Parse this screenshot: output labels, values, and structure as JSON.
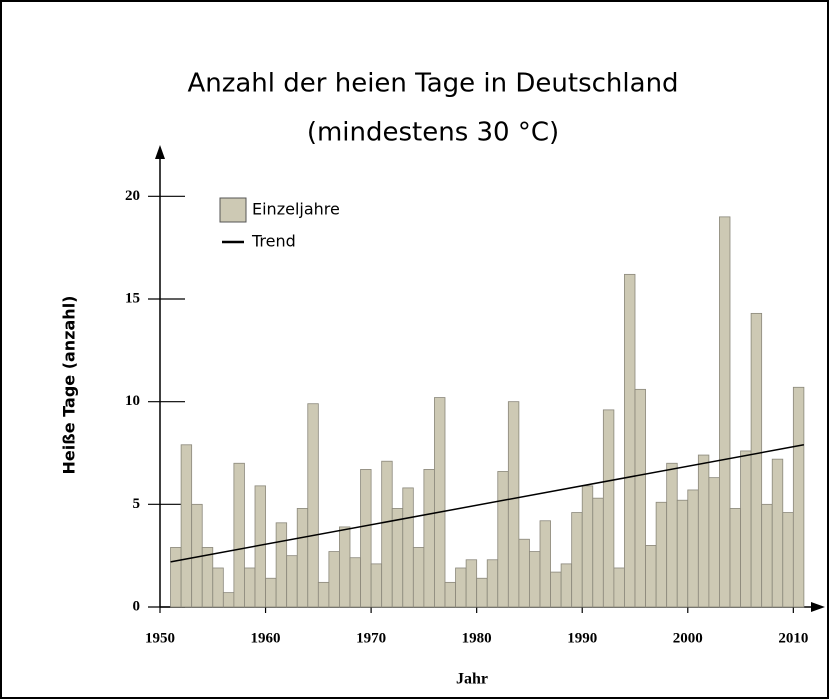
{
  "chart_data": {
    "type": "bar",
    "title": [
      "Anzahl der heien Tage in Deutschland",
      "(mindestens 30 °C)"
    ],
    "xlabel": "Jahr",
    "ylabel": "Heiße Tage (anzahl)",
    "x": [
      1951,
      1952,
      1953,
      1954,
      1955,
      1956,
      1957,
      1958,
      1959,
      1960,
      1961,
      1962,
      1963,
      1964,
      1965,
      1966,
      1967,
      1968,
      1969,
      1970,
      1971,
      1972,
      1973,
      1974,
      1975,
      1976,
      1977,
      1978,
      1979,
      1980,
      1981,
      1982,
      1983,
      1984,
      1985,
      1986,
      1987,
      1988,
      1989,
      1990,
      1991,
      1992,
      1993,
      1994,
      1995,
      1996,
      1997,
      1998,
      1999,
      2000,
      2001,
      2002,
      2003,
      2004,
      2005,
      2006,
      2007,
      2008,
      2009,
      2010
    ],
    "series": [
      {
        "name": "Einzeljahre",
        "color": "#cdc9b4",
        "values": [
          2.9,
          7.9,
          5.0,
          2.9,
          1.9,
          0.7,
          7.0,
          1.9,
          5.9,
          1.4,
          4.1,
          2.5,
          4.8,
          9.9,
          1.2,
          2.7,
          3.9,
          2.4,
          6.7,
          2.1,
          7.1,
          4.8,
          5.8,
          2.9,
          6.7,
          10.2,
          1.2,
          1.9,
          2.3,
          1.4,
          2.3,
          6.6,
          10.0,
          3.3,
          2.7,
          4.2,
          1.7,
          2.1,
          4.6,
          5.9,
          5.3,
          9.6,
          1.9,
          16.2,
          10.6,
          3.0,
          5.1,
          7.0,
          5.2,
          5.7,
          7.4,
          6.3,
          19.0,
          4.8,
          7.6,
          14.3,
          5.0,
          7.2,
          4.6,
          10.7
        ]
      },
      {
        "name": "Trend",
        "color": "#000000",
        "type": "line",
        "x": [
          1951,
          2011
        ],
        "values": [
          2.2,
          7.9
        ]
      }
    ],
    "xlim": [
      1950,
      2013
    ],
    "xticks": [
      1950,
      1960,
      1970,
      1980,
      1990,
      2000,
      2010
    ],
    "ylim": [
      0,
      22.5
    ],
    "yticks": [
      0,
      5,
      10,
      15,
      20
    ]
  }
}
